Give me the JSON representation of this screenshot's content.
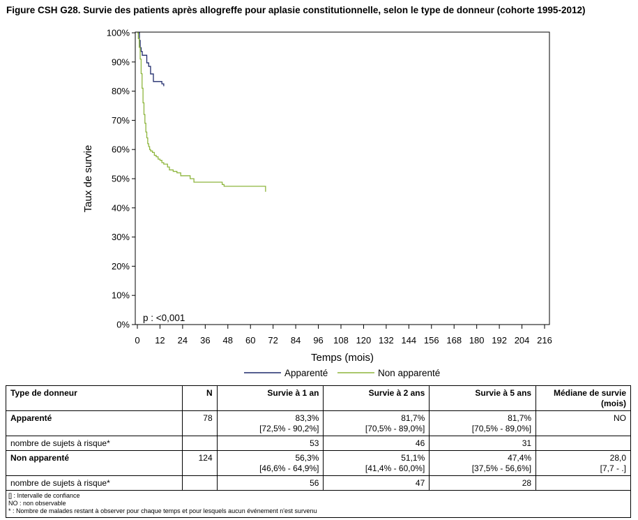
{
  "title": "Figure CSH G28. Survie des patients après allogreffe pour aplasie constitutionnelle, selon le type de donneur (cohorte 1995-2012)",
  "chart_data": {
    "type": "line",
    "title": "Figure CSH G28. Survie des patients après allogreffe pour aplasie constitutionnelle, selon le type de donneur (cohorte 1995-2012)",
    "xlabel": "Temps (mois)",
    "ylabel": "Taux de survie",
    "xlim": [
      0,
      216
    ],
    "ylim": [
      0,
      100
    ],
    "x_ticks": [
      0,
      12,
      24,
      36,
      48,
      60,
      72,
      84,
      96,
      108,
      120,
      132,
      144,
      156,
      168,
      180,
      192,
      204,
      216
    ],
    "x_tick_labels": [
      "0",
      "12",
      "24",
      "36",
      "48",
      "60",
      "72",
      "84",
      "96",
      "108",
      "120",
      "132",
      "144",
      "156",
      "168",
      "180",
      "192",
      "204",
      "216"
    ],
    "y_ticks": [
      0,
      10,
      20,
      30,
      40,
      50,
      60,
      70,
      80,
      90,
      100
    ],
    "y_tick_labels": [
      "0%",
      "10%",
      "20%",
      "30%",
      "40%",
      "50%",
      "60%",
      "70%",
      "80%",
      "90%",
      "100%"
    ],
    "grid": false,
    "legend_position": "bottom",
    "annotation": "p : <0,001",
    "step": true,
    "series": [
      {
        "name": "Apparenté",
        "color": "#1f2a6b",
        "x": [
          0,
          1.1,
          1.5,
          2.0,
          2.6,
          3.0,
          5.0,
          6.0,
          7.0,
          8.5,
          13.0,
          14.0
        ],
        "y": [
          100,
          97.4,
          94.9,
          93.6,
          92.3,
          92.3,
          89.7,
          88.5,
          85.9,
          83.3,
          82.5,
          81.7
        ]
      },
      {
        "name": "Non apparenté",
        "color": "#8db53c",
        "x": [
          0,
          0.5,
          1,
          1.5,
          2,
          2.5,
          3,
          3.5,
          4,
          4.5,
          5,
          5.5,
          6,
          6.5,
          7,
          8,
          9,
          10,
          11,
          12,
          13,
          14,
          15,
          16,
          17,
          19,
          21,
          23,
          25,
          27,
          28,
          30,
          35,
          40,
          44,
          45,
          46,
          50,
          60,
          65,
          68
        ],
        "y": [
          100,
          98,
          95,
          91,
          86,
          81,
          76,
          72,
          69,
          66,
          64,
          62,
          61,
          60,
          59.5,
          59,
          58,
          57.5,
          56.7,
          56.3,
          55.5,
          55,
          55,
          54,
          53,
          52.5,
          52,
          51,
          51,
          51,
          50,
          48.8,
          48.8,
          48.8,
          48.8,
          48,
          47.4,
          47.4,
          47.4,
          47.4,
          45.5
        ]
      }
    ]
  },
  "table": {
    "headers": {
      "type": "Type de donneur",
      "n": "N",
      "s1": "Survie à 1 an",
      "s2": "Survie à 2 ans",
      "s5": "Survie à 5 ans",
      "median": "Médiane de survie (mois)"
    },
    "rows": [
      {
        "label": "Apparenté",
        "n": "78",
        "s1": "83,3%",
        "s1_ci": "[72,5% - 90,2%]",
        "s2": "81,7%",
        "s2_ci": "[70,5% - 89,0%]",
        "s5": "81,7%",
        "s5_ci": "[70,5% - 89,0%]",
        "median": "NO",
        "median_ci": ""
      },
      {
        "label": "nombre de sujets à risque*",
        "n": "",
        "s1": "53",
        "s2": "46",
        "s5": "31",
        "median": ""
      },
      {
        "label": "Non apparenté",
        "n": "124",
        "s1": "56,3%",
        "s1_ci": "[46,6% - 64,9%]",
        "s2": "51,1%",
        "s2_ci": "[41,4% - 60,0%]",
        "s5": "47,4%",
        "s5_ci": "[37,5% - 56,6%]",
        "median": "28,0",
        "median_ci": "[7,7 - .]"
      },
      {
        "label": "nombre de sujets à risque*",
        "n": "",
        "s1": "56",
        "s2": "47",
        "s5": "28",
        "median": ""
      }
    ],
    "notes": [
      "[] : Intervalle de confiance",
      "NO : non observable",
      "* : Nombre de malades restant à observer pour chaque temps et pour lesquels aucun événement n'est survenu"
    ]
  }
}
